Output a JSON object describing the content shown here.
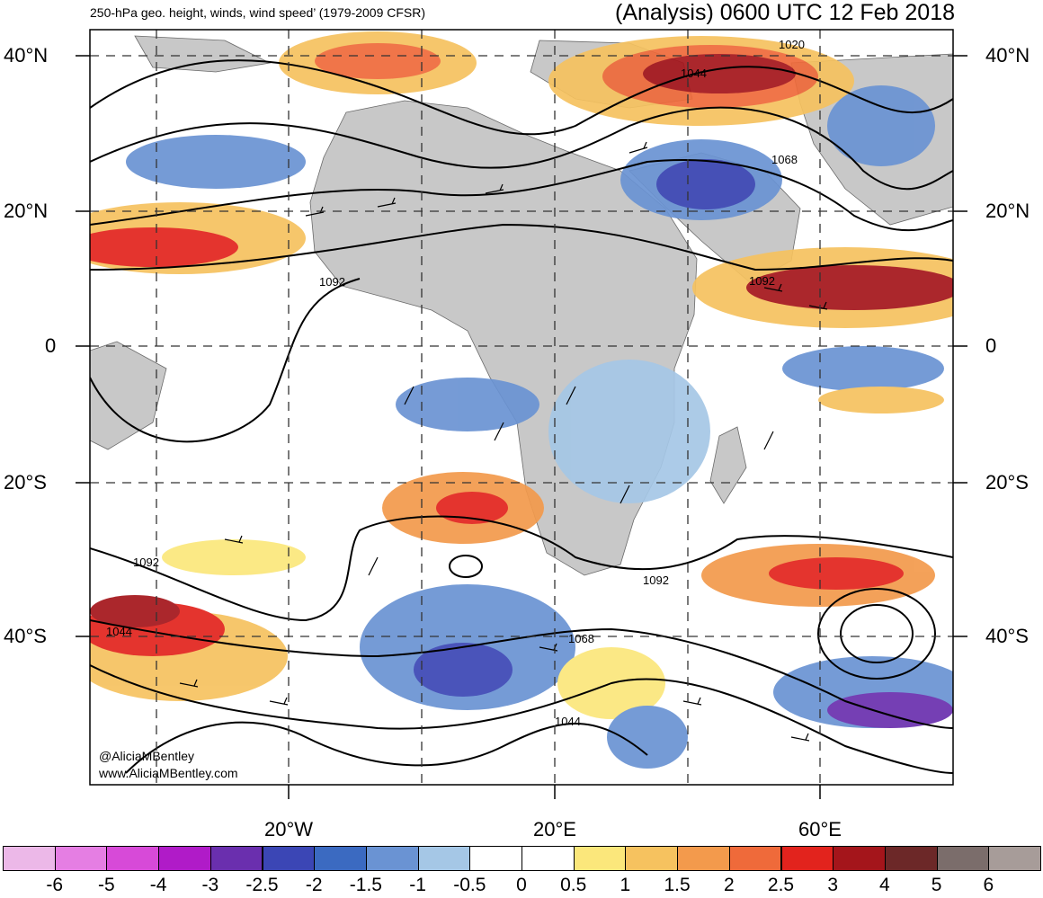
{
  "header": {
    "title_left": "250-hPa geo. height, winds, wind speed’ (1979-2009 CFSR)",
    "title_right": "(Analysis) 0600 UTC 12 Feb 2018"
  },
  "lat_labels": [
    "40°N",
    "20°N",
    "0",
    "20°S",
    "40°S"
  ],
  "lon_labels": [
    "20°W",
    "20°E",
    "60°E"
  ],
  "contour_labels": [
    "1020",
    "1044",
    "1068",
    "1092",
    "1092",
    "1092",
    "1092",
    "1044",
    "1068",
    "1044"
  ],
  "credits": {
    "twitter": "@AliciaMBentley",
    "website": "www.AliciaMBentley.com"
  },
  "colorbar": {
    "labels": [
      "-6",
      "-5",
      "-4",
      "-3",
      "-2.5",
      "-2",
      "-1.5",
      "-1",
      "-0.5",
      "0",
      "0.5",
      "1",
      "1.5",
      "2",
      "2.5",
      "3",
      "4",
      "5",
      "6"
    ],
    "colors": [
      "#ecb8e8",
      "#e57ee3",
      "#d74ad8",
      "#b01bc8",
      "#6a2fae",
      "#3b46b5",
      "#3b6ac1",
      "#6a93d3",
      "#a5c7e6",
      "#ffffff",
      "#ffffff",
      "#fbe77b",
      "#f6c25f",
      "#f39a4c",
      "#ef6a3a",
      "#e2231d",
      "#a4151b",
      "#6c2828",
      "#7b6d6b",
      "#a79c99"
    ]
  },
  "map_colors": {
    "land": "#c8c8c8",
    "ocean": "#ffffff"
  }
}
